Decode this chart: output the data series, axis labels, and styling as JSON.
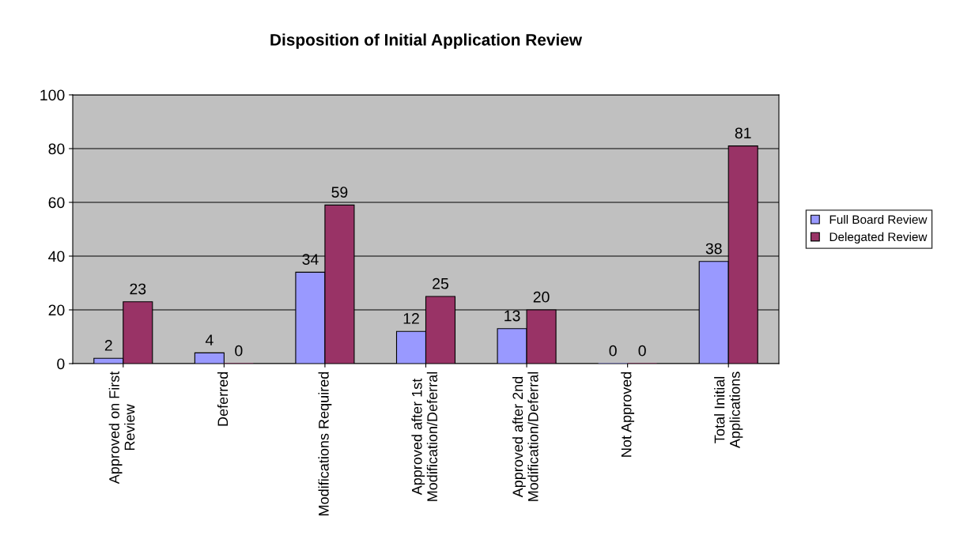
{
  "chart_data": {
    "type": "bar",
    "title": "Disposition of Initial Application Review",
    "categories": [
      "Approved on First\nReview",
      "Deferred",
      "Modifications Required",
      "Approved after 1st\nModification/Deferral",
      "Approved after 2nd\nModification/Deferral",
      "Not Approved",
      "Total Initial\nApplications"
    ],
    "series": [
      {
        "name": "Full Board Review",
        "color": "#9999ff",
        "values": [
          2,
          4,
          34,
          12,
          13,
          0,
          38
        ]
      },
      {
        "name": "Delegated Review",
        "color": "#993366",
        "values": [
          23,
          0,
          59,
          25,
          20,
          0,
          81
        ]
      }
    ],
    "ylim": [
      0,
      100
    ],
    "yticks": [
      0,
      20,
      40,
      60,
      80,
      100
    ],
    "grid": "y",
    "legend": "right",
    "data_labels": true
  }
}
